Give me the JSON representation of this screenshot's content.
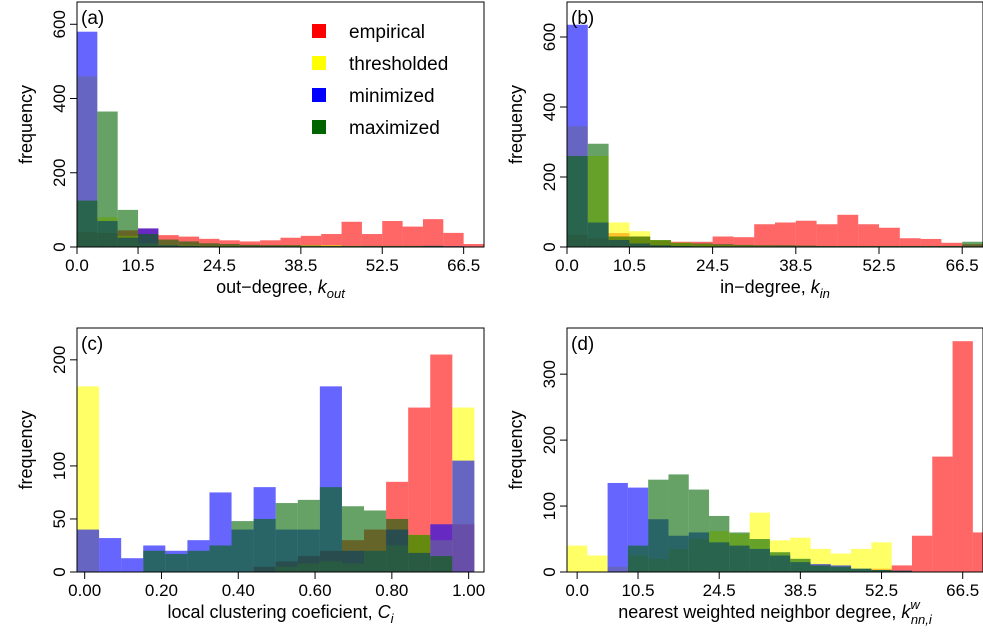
{
  "legend": {
    "entries": [
      {
        "label": "empirical",
        "color": "#ff0000"
      },
      {
        "label": "thresholded",
        "color": "#ffff00"
      },
      {
        "label": "minimized",
        "color": "#0000ff"
      },
      {
        "label": "maximized",
        "color": "#006400"
      }
    ]
  },
  "chart_data": [
    {
      "type": "bar",
      "panel_label": "(a)",
      "xlabel": "out−degree, ",
      "xlabel_var": "k",
      "xlabel_sub": "out",
      "xlabel_sup": "",
      "ylabel": "frequency",
      "x_start": 0,
      "bin_width": 3.5,
      "xlim": [
        0,
        70
      ],
      "ylim": [
        0,
        660
      ],
      "xticks": [
        0,
        10.5,
        24.5,
        38.5,
        52.5,
        66.5
      ],
      "xtick_labels": [
        "0.0",
        "10.5",
        "24.5",
        "38.5",
        "52.5",
        "66.5"
      ],
      "yticks": [
        0,
        200,
        400,
        600
      ],
      "ytick_labels": [
        "0",
        "200",
        "400",
        "600"
      ],
      "series": [
        {
          "name": "empirical",
          "values": [
            40,
            38,
            45,
            50,
            32,
            28,
            22,
            18,
            15,
            18,
            25,
            30,
            35,
            68,
            35,
            70,
            55,
            75,
            38,
            8
          ]
        },
        {
          "name": "thresholded",
          "values": [
            460,
            80,
            30,
            10,
            5,
            4,
            3,
            3,
            2,
            2,
            3,
            5,
            5,
            3,
            2,
            2,
            2,
            2,
            1,
            0
          ]
        },
        {
          "name": "minimized",
          "values": [
            580,
            70,
            25,
            50,
            5,
            3,
            2,
            2,
            2,
            2,
            2,
            2,
            2,
            2,
            2,
            2,
            2,
            3,
            2,
            0
          ]
        },
        {
          "name": "maximized",
          "values": [
            125,
            365,
            100,
            35,
            20,
            15,
            10,
            8,
            6,
            5,
            5,
            4,
            3,
            3,
            3,
            3,
            3,
            3,
            2,
            1
          ]
        }
      ]
    },
    {
      "type": "bar",
      "panel_label": "(b)",
      "xlabel": "in−degree, ",
      "xlabel_var": "k",
      "xlabel_sub": "in",
      "xlabel_sup": "",
      "ylabel": "frequency",
      "x_start": 0,
      "bin_width": 3.5,
      "xlim": [
        0,
        70
      ],
      "ylim": [
        0,
        700
      ],
      "xticks": [
        0,
        10.5,
        24.5,
        38.5,
        52.5,
        66.5
      ],
      "xtick_labels": [
        "0.0",
        "10.5",
        "24.5",
        "38.5",
        "52.5",
        "66.5"
      ],
      "yticks": [
        0,
        200,
        400,
        600
      ],
      "ytick_labels": [
        "0",
        "200",
        "400",
        "600"
      ],
      "series": [
        {
          "name": "empirical",
          "values": [
            35,
            25,
            40,
            30,
            18,
            15,
            15,
            30,
            28,
            65,
            70,
            75,
            65,
            92,
            65,
            55,
            25,
            23,
            12,
            8
          ]
        },
        {
          "name": "thresholded",
          "values": [
            345,
            260,
            70,
            45,
            20,
            12,
            8,
            5,
            4,
            3,
            2,
            2,
            2,
            2,
            2,
            2,
            2,
            2,
            2,
            2
          ]
        },
        {
          "name": "minimized",
          "values": [
            635,
            70,
            20,
            10,
            5,
            3,
            2,
            2,
            2,
            2,
            2,
            2,
            2,
            2,
            2,
            2,
            2,
            2,
            2,
            2
          ]
        },
        {
          "name": "maximized",
          "values": [
            260,
            295,
            30,
            30,
            20,
            12,
            10,
            8,
            6,
            5,
            5,
            4,
            3,
            3,
            3,
            3,
            3,
            3,
            3,
            15
          ]
        }
      ]
    },
    {
      "type": "bar",
      "panel_label": "(c)",
      "xlabel": "local clustering coeficient, ",
      "xlabel_var": "C",
      "xlabel_sub": "i",
      "xlabel_sup": "",
      "ylabel": "frequency",
      "x_start": -0.02,
      "bin_width": 0.0575,
      "xlim": [
        -0.02,
        1.04
      ],
      "ylim": [
        0,
        230
      ],
      "xticks": [
        0.0,
        0.2,
        0.4,
        0.6,
        0.8,
        1.0
      ],
      "xtick_labels": [
        "0.00",
        "0.20",
        "0.40",
        "0.60",
        "0.80",
        "1.00"
      ],
      "yticks": [
        0,
        50,
        100,
        200
      ],
      "ytick_labels": [
        "0",
        "50",
        "100",
        "200"
      ],
      "series": [
        {
          "name": "empirical",
          "values": [
            0,
            0,
            0,
            0,
            0,
            0,
            0,
            0,
            5,
            10,
            15,
            20,
            30,
            40,
            85,
            155,
            205,
            45
          ]
        },
        {
          "name": "thresholded",
          "values": [
            175,
            0,
            0,
            0,
            0,
            0,
            0,
            0,
            0,
            5,
            8,
            10,
            8,
            20,
            25,
            35,
            30,
            155
          ]
        },
        {
          "name": "minimized",
          "values": [
            40,
            32,
            13,
            25,
            20,
            30,
            75,
            40,
            80,
            40,
            40,
            175,
            20,
            20,
            40,
            18,
            45,
            105
          ]
        },
        {
          "name": "maximized",
          "values": [
            0,
            0,
            0,
            20,
            17,
            20,
            25,
            48,
            50,
            65,
            68,
            80,
            62,
            58,
            50,
            35,
            15,
            0
          ]
        }
      ]
    },
    {
      "type": "bar",
      "panel_label": "(d)",
      "xlabel": "nearest weighted neighbor degree, ",
      "xlabel_var": "k",
      "xlabel_sub": "nn,i",
      "xlabel_sup": "w",
      "ylabel": "frequency",
      "x_start": -1.75,
      "bin_width": 3.5,
      "xlim": [
        -1.75,
        70
      ],
      "ylim": [
        0,
        370
      ],
      "xticks": [
        0,
        10.5,
        24.5,
        38.5,
        52.5,
        66.5
      ],
      "xtick_labels": [
        "0.0",
        "10.5",
        "24.5",
        "38.5",
        "52.5",
        "66.5"
      ],
      "yticks": [
        0,
        100,
        200,
        300
      ],
      "ytick_labels": [
        "0",
        "100",
        "200",
        "300"
      ],
      "series": [
        {
          "name": "empirical",
          "values": [
            0,
            0,
            0,
            0,
            0,
            0,
            0,
            0,
            0,
            0,
            0,
            0,
            0,
            0,
            0,
            5,
            10,
            55,
            175,
            350,
            60
          ]
        },
        {
          "name": "thresholded",
          "values": [
            40,
            25,
            8,
            25,
            20,
            35,
            50,
            62,
            58,
            90,
            48,
            52,
            35,
            28,
            35,
            45,
            0,
            0,
            0,
            0,
            0
          ]
        },
        {
          "name": "minimized",
          "values": [
            0,
            0,
            135,
            128,
            80,
            55,
            60,
            45,
            40,
            35,
            25,
            15,
            12,
            10,
            5,
            3,
            2,
            0,
            0,
            0,
            0
          ]
        },
        {
          "name": "maximized",
          "values": [
            0,
            0,
            0,
            40,
            140,
            148,
            125,
            85,
            60,
            50,
            30,
            20,
            10,
            8,
            5,
            3,
            2,
            0,
            0,
            0,
            0
          ]
        }
      ]
    }
  ]
}
